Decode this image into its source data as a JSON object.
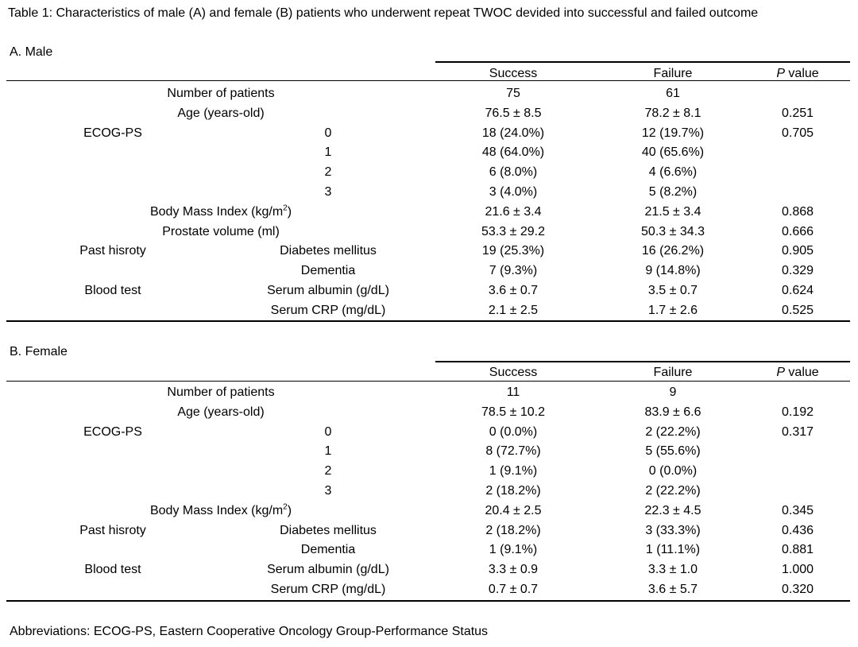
{
  "caption": "Table 1: Characteristics of male (A) and female (B) patients who underwent repeat TWOC devided into successful and failed outcome",
  "columns": {
    "success": "Success",
    "failure": "Failure",
    "p_italic": "P",
    "p_rest": " value"
  },
  "male": {
    "title": "A. Male",
    "rows": [
      {
        "group": "",
        "label": "Number of patients",
        "success": "75",
        "failure": "61",
        "p": ""
      },
      {
        "group": "",
        "label": "Age (years-old)",
        "success": "76.5 ± 8.5",
        "failure": "78.2 ± 8.1",
        "p": "0.251"
      },
      {
        "group": "ECOG-PS",
        "label": "0",
        "success": "18 (24.0%)",
        "failure": "12 (19.7%)",
        "p": "0.705"
      },
      {
        "group": "",
        "label": "1",
        "success": "48 (64.0%)",
        "failure": "40 (65.6%)",
        "p": ""
      },
      {
        "group": "",
        "label": "2",
        "success": "6 (8.0%)",
        "failure": "4 (6.6%)",
        "p": ""
      },
      {
        "group": "",
        "label": "3",
        "success": "3 (4.0%)",
        "failure": "5 (8.2%)",
        "p": ""
      },
      {
        "group": "",
        "label": "Body Mass Index (kg/m",
        "sup": "2",
        "label_after": ")",
        "success": "21.6 ± 3.4",
        "failure": "21.5 ± 3.4",
        "p": "0.868"
      },
      {
        "group": "",
        "label": "Prostate volume (ml)",
        "success": "53.3 ± 29.2",
        "failure": "50.3 ± 34.3",
        "p": "0.666"
      },
      {
        "group": "Past hisroty",
        "label": "Diabetes mellitus",
        "success": "19 (25.3%)",
        "failure": "16 (26.2%)",
        "p": "0.905"
      },
      {
        "group": "",
        "label": "Dementia",
        "success": "7 (9.3%)",
        "failure": "9 (14.8%)",
        "p": "0.329"
      },
      {
        "group": "Blood test",
        "label": "Serum albumin (g/dL)",
        "success": "3.6 ± 0.7",
        "failure": "3.5 ± 0.7",
        "p": "0.624"
      },
      {
        "group": "",
        "label": "Serum CRP (mg/dL)",
        "success": "2.1 ± 2.5",
        "failure": "1.7 ± 2.6",
        "p": "0.525"
      }
    ]
  },
  "female": {
    "title": "B. Female",
    "rows": [
      {
        "group": "",
        "label": "Number of patients",
        "success": "11",
        "failure": "9",
        "p": ""
      },
      {
        "group": "",
        "label": "Age (years-old)",
        "success": "78.5 ± 10.2",
        "failure": "83.9 ± 6.6",
        "p": "0.192"
      },
      {
        "group": "ECOG-PS",
        "label": "0",
        "success": "0 (0.0%)",
        "failure": "2 (22.2%)",
        "p": "0.317"
      },
      {
        "group": "",
        "label": "1",
        "success": "8 (72.7%)",
        "failure": "5 (55.6%)",
        "p": ""
      },
      {
        "group": "",
        "label": "2",
        "success": "1 (9.1%)",
        "failure": "0 (0.0%)",
        "p": ""
      },
      {
        "group": "",
        "label": "3",
        "success": "2 (18.2%)",
        "failure": "2 (22.2%)",
        "p": ""
      },
      {
        "group": "",
        "label": "Body Mass Index (kg/m",
        "sup": "2",
        "label_after": ")",
        "success": "20.4 ± 2.5",
        "failure": "22.3 ± 4.5",
        "p": "0.345"
      },
      {
        "group": "Past hisroty",
        "label": "Diabetes mellitus",
        "success": "2 (18.2%)",
        "failure": "3 (33.3%)",
        "p": "0.436"
      },
      {
        "group": "",
        "label": "Dementia",
        "success": "1 (9.1%)",
        "failure": "1 (11.1%)",
        "p": "0.881"
      },
      {
        "group": "Blood test",
        "label": "Serum albumin (g/dL)",
        "success": "3.3 ± 0.9",
        "failure": "3.3 ± 1.0",
        "p": "1.000"
      },
      {
        "group": "",
        "label": "Serum CRP (mg/dL)",
        "success": "0.7 ± 0.7",
        "failure": "3.6 ± 5.7",
        "p": "0.320"
      }
    ]
  },
  "abbreviations": "Abbreviations: ECOG-PS, Eastern Cooperative Oncology Group-Performance Status"
}
